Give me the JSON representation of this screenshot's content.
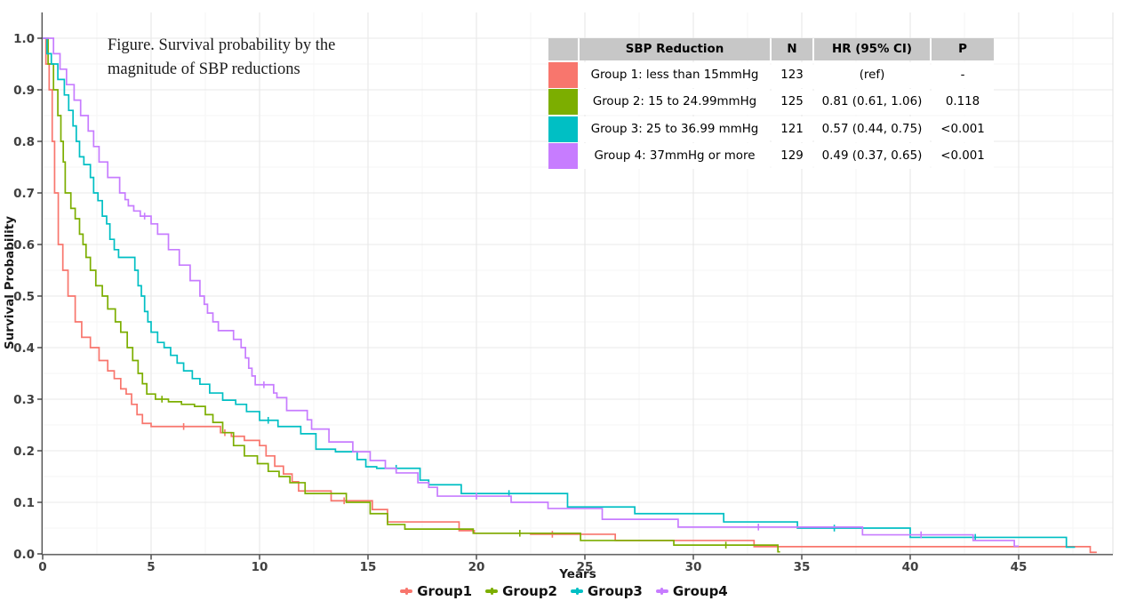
{
  "figure": {
    "title_line1": "Figure. Survival probability by the",
    "title_line2": "magnitude of SBP reductions"
  },
  "chart_data": {
    "type": "line",
    "subtype": "kaplan-meier-step",
    "title": "Figure. Survival probability by the magnitude of SBP reductions",
    "xlabel": "Years",
    "ylabel": "Survival Probability",
    "xlim": [
      0,
      49.3
    ],
    "ylim": [
      0,
      1.05
    ],
    "x_ticks": [
      0,
      5,
      10,
      15,
      20,
      25,
      30,
      35,
      40,
      45
    ],
    "y_ticks": [
      0,
      0.1,
      0.2,
      0.3,
      0.4,
      0.5,
      0.6,
      0.7,
      0.8,
      0.9,
      1.0
    ],
    "y_tick_labels": [
      "0.0",
      "0.1",
      "0.2",
      "0.3",
      "0.4",
      "0.5",
      "0.6",
      "0.7",
      "0.8",
      "0.9",
      "1.0"
    ],
    "grid": "major+minor",
    "legend_position": "bottom",
    "colors": {
      "group1": "#F8766D",
      "group2": "#7CAE00",
      "group3": "#00BFC4",
      "group4": "#C77CFF",
      "grid_major": "#e8e8e8",
      "grid_minor": "#f5f5f5",
      "axis_line": "#555555",
      "tick_mark": "#333333",
      "tick_text": "#404040"
    },
    "series": [
      {
        "name": "Group1",
        "color": "#F8766D",
        "points": [
          [
            0,
            1
          ],
          [
            0.15,
            0.95
          ],
          [
            0.3,
            0.9
          ],
          [
            0.44,
            0.8
          ],
          [
            0.55,
            0.7
          ],
          [
            0.72,
            0.6
          ],
          [
            0.93,
            0.55
          ],
          [
            1.17,
            0.5
          ],
          [
            1.5,
            0.45
          ],
          [
            1.8,
            0.42
          ],
          [
            2.2,
            0.4
          ],
          [
            2.6,
            0.375
          ],
          [
            3.0,
            0.355
          ],
          [
            3.3,
            0.34
          ],
          [
            3.6,
            0.32
          ],
          [
            3.85,
            0.31
          ],
          [
            4.1,
            0.29
          ],
          [
            4.35,
            0.27
          ],
          [
            4.6,
            0.253
          ],
          [
            5.0,
            0.247
          ],
          [
            8.2,
            0.235
          ],
          [
            8.7,
            0.228
          ],
          [
            9.3,
            0.22
          ],
          [
            10.0,
            0.21
          ],
          [
            10.3,
            0.19
          ],
          [
            10.7,
            0.17
          ],
          [
            11.1,
            0.155
          ],
          [
            11.5,
            0.14
          ],
          [
            11.8,
            0.122
          ],
          [
            13.3,
            0.103
          ],
          [
            15.2,
            0.086
          ],
          [
            15.9,
            0.062
          ],
          [
            19.2,
            0.045
          ],
          [
            19.9,
            0.04
          ],
          [
            22.5,
            0.038
          ],
          [
            26.4,
            0.026
          ],
          [
            32.8,
            0.014
          ],
          [
            48.3,
            0.003
          ],
          [
            48.6,
            0.003
          ]
        ],
        "censors": [
          [
            6.5,
            0.247
          ],
          [
            8.4,
            0.235
          ],
          [
            13.9,
            0.103
          ],
          [
            23.5,
            0.038
          ]
        ]
      },
      {
        "name": "Group2",
        "color": "#7CAE00",
        "points": [
          [
            0,
            1
          ],
          [
            0.25,
            0.95
          ],
          [
            0.5,
            0.9
          ],
          [
            0.7,
            0.85
          ],
          [
            0.84,
            0.8
          ],
          [
            0.95,
            0.76
          ],
          [
            1.04,
            0.7
          ],
          [
            1.3,
            0.67
          ],
          [
            1.5,
            0.65
          ],
          [
            1.7,
            0.62
          ],
          [
            1.86,
            0.6
          ],
          [
            2.0,
            0.575
          ],
          [
            2.2,
            0.55
          ],
          [
            2.45,
            0.52
          ],
          [
            2.75,
            0.5
          ],
          [
            3.0,
            0.475
          ],
          [
            3.35,
            0.45
          ],
          [
            3.6,
            0.43
          ],
          [
            3.9,
            0.4
          ],
          [
            4.15,
            0.375
          ],
          [
            4.4,
            0.35
          ],
          [
            4.6,
            0.33
          ],
          [
            4.8,
            0.31
          ],
          [
            5.2,
            0.3
          ],
          [
            5.8,
            0.295
          ],
          [
            6.4,
            0.29
          ],
          [
            7.0,
            0.286
          ],
          [
            7.5,
            0.27
          ],
          [
            7.85,
            0.255
          ],
          [
            8.3,
            0.235
          ],
          [
            8.8,
            0.21
          ],
          [
            9.3,
            0.19
          ],
          [
            9.9,
            0.175
          ],
          [
            10.4,
            0.16
          ],
          [
            10.9,
            0.15
          ],
          [
            11.4,
            0.138
          ],
          [
            12.1,
            0.117
          ],
          [
            14.0,
            0.1
          ],
          [
            15.1,
            0.078
          ],
          [
            15.9,
            0.057
          ],
          [
            16.7,
            0.048
          ],
          [
            19.85,
            0.04
          ],
          [
            24.8,
            0.026
          ],
          [
            29.1,
            0.017
          ],
          [
            33.9,
            0.004
          ],
          [
            34.0,
            0.004
          ]
        ],
        "censors": [
          [
            5.5,
            0.3
          ],
          [
            22.0,
            0.04
          ],
          [
            31.5,
            0.017
          ]
        ]
      },
      {
        "name": "Group3",
        "color": "#00BFC4",
        "points": [
          [
            0,
            1
          ],
          [
            0.2,
            0.97
          ],
          [
            0.4,
            0.95
          ],
          [
            0.7,
            0.92
          ],
          [
            1.0,
            0.89
          ],
          [
            1.2,
            0.86
          ],
          [
            1.4,
            0.83
          ],
          [
            1.55,
            0.8
          ],
          [
            1.7,
            0.77
          ],
          [
            1.9,
            0.755
          ],
          [
            2.2,
            0.73
          ],
          [
            2.35,
            0.7
          ],
          [
            2.55,
            0.685
          ],
          [
            2.75,
            0.655
          ],
          [
            2.95,
            0.64
          ],
          [
            3.1,
            0.61
          ],
          [
            3.3,
            0.59
          ],
          [
            3.5,
            0.575
          ],
          [
            4.25,
            0.55
          ],
          [
            4.4,
            0.52
          ],
          [
            4.55,
            0.5
          ],
          [
            4.7,
            0.47
          ],
          [
            4.85,
            0.45
          ],
          [
            5.0,
            0.43
          ],
          [
            5.3,
            0.41
          ],
          [
            5.6,
            0.4
          ],
          [
            5.9,
            0.385
          ],
          [
            6.2,
            0.37
          ],
          [
            6.5,
            0.355
          ],
          [
            6.9,
            0.34
          ],
          [
            7.25,
            0.329
          ],
          [
            7.7,
            0.312
          ],
          [
            8.3,
            0.298
          ],
          [
            8.9,
            0.29
          ],
          [
            9.4,
            0.276
          ],
          [
            10.0,
            0.259
          ],
          [
            10.85,
            0.247
          ],
          [
            11.9,
            0.233
          ],
          [
            12.6,
            0.203
          ],
          [
            13.5,
            0.198
          ],
          [
            14.5,
            0.183
          ],
          [
            14.9,
            0.169
          ],
          [
            15.4,
            0.166
          ],
          [
            17.4,
            0.143
          ],
          [
            17.8,
            0.134
          ],
          [
            19.3,
            0.117
          ],
          [
            24.2,
            0.091
          ],
          [
            27.3,
            0.078
          ],
          [
            31.4,
            0.062
          ],
          [
            34.8,
            0.05
          ],
          [
            40.0,
            0.032
          ],
          [
            47.2,
            0.013
          ],
          [
            47.6,
            0.013
          ]
        ],
        "censors": [
          [
            10.4,
            0.259
          ],
          [
            16.3,
            0.166
          ],
          [
            21.5,
            0.117
          ],
          [
            36.5,
            0.05
          ],
          [
            43.0,
            0.032
          ]
        ]
      },
      {
        "name": "Group4",
        "color": "#C77CFF",
        "points": [
          [
            0,
            1
          ],
          [
            0.5,
            0.97
          ],
          [
            0.8,
            0.94
          ],
          [
            1.1,
            0.91
          ],
          [
            1.45,
            0.88
          ],
          [
            1.75,
            0.85
          ],
          [
            2.1,
            0.82
          ],
          [
            2.35,
            0.79
          ],
          [
            2.6,
            0.76
          ],
          [
            3.0,
            0.73
          ],
          [
            3.55,
            0.7
          ],
          [
            3.8,
            0.687
          ],
          [
            3.95,
            0.675
          ],
          [
            4.2,
            0.665
          ],
          [
            4.5,
            0.655
          ],
          [
            5.0,
            0.64
          ],
          [
            5.3,
            0.62
          ],
          [
            5.8,
            0.59
          ],
          [
            6.3,
            0.56
          ],
          [
            6.8,
            0.53
          ],
          [
            7.25,
            0.5
          ],
          [
            7.45,
            0.484
          ],
          [
            7.6,
            0.467
          ],
          [
            7.85,
            0.45
          ],
          [
            8.1,
            0.433
          ],
          [
            8.8,
            0.416
          ],
          [
            9.15,
            0.4
          ],
          [
            9.35,
            0.38
          ],
          [
            9.5,
            0.36
          ],
          [
            9.65,
            0.345
          ],
          [
            9.8,
            0.328
          ],
          [
            10.65,
            0.312
          ],
          [
            10.8,
            0.303
          ],
          [
            11.25,
            0.278
          ],
          [
            12.2,
            0.26
          ],
          [
            12.4,
            0.242
          ],
          [
            13.2,
            0.217
          ],
          [
            14.3,
            0.198
          ],
          [
            15.1,
            0.181
          ],
          [
            15.8,
            0.166
          ],
          [
            16.3,
            0.157
          ],
          [
            17.3,
            0.138
          ],
          [
            17.8,
            0.129
          ],
          [
            18.2,
            0.112
          ],
          [
            21.6,
            0.1
          ],
          [
            23.3,
            0.088
          ],
          [
            25.8,
            0.067
          ],
          [
            29.3,
            0.052
          ],
          [
            37.8,
            0.037
          ],
          [
            42.9,
            0.026
          ],
          [
            44.8,
            0.015
          ],
          [
            45.0,
            0.015
          ]
        ],
        "censors": [
          [
            4.7,
            0.655
          ],
          [
            10.2,
            0.328
          ],
          [
            20.0,
            0.112
          ],
          [
            33.0,
            0.052
          ],
          [
            40.5,
            0.037
          ]
        ]
      }
    ]
  },
  "table": {
    "header_bg": "#c7c7c7",
    "headers": [
      "SBP Reduction",
      "N",
      "HR (95% CI)",
      "P"
    ],
    "rows": [
      {
        "color": "#F8766D",
        "label": "Group 1: less than 15mmHg",
        "n": "123",
        "hr": "(ref)",
        "p": "-"
      },
      {
        "color": "#7CAE00",
        "label": "Group 2: 15 to 24.99mmHg",
        "n": "125",
        "hr": "0.81 (0.61, 1.06)",
        "p": "0.118"
      },
      {
        "color": "#00BFC4",
        "label": "Group 3: 25 to 36.99 mmHg",
        "n": "121",
        "hr": "0.57 (0.44, 0.75)",
        "p": "<0.001"
      },
      {
        "color": "#C77CFF",
        "label": "Group 4: 37mmHg or more",
        "n": "129",
        "hr": "0.49 (0.37, 0.65)",
        "p": "<0.001"
      }
    ]
  },
  "legend": {
    "items": [
      {
        "label": "Group1",
        "color": "#F8766D"
      },
      {
        "label": "Group2",
        "color": "#7CAE00"
      },
      {
        "label": "Group3",
        "color": "#00BFC4"
      },
      {
        "label": "Group4",
        "color": "#C77CFF"
      }
    ]
  }
}
